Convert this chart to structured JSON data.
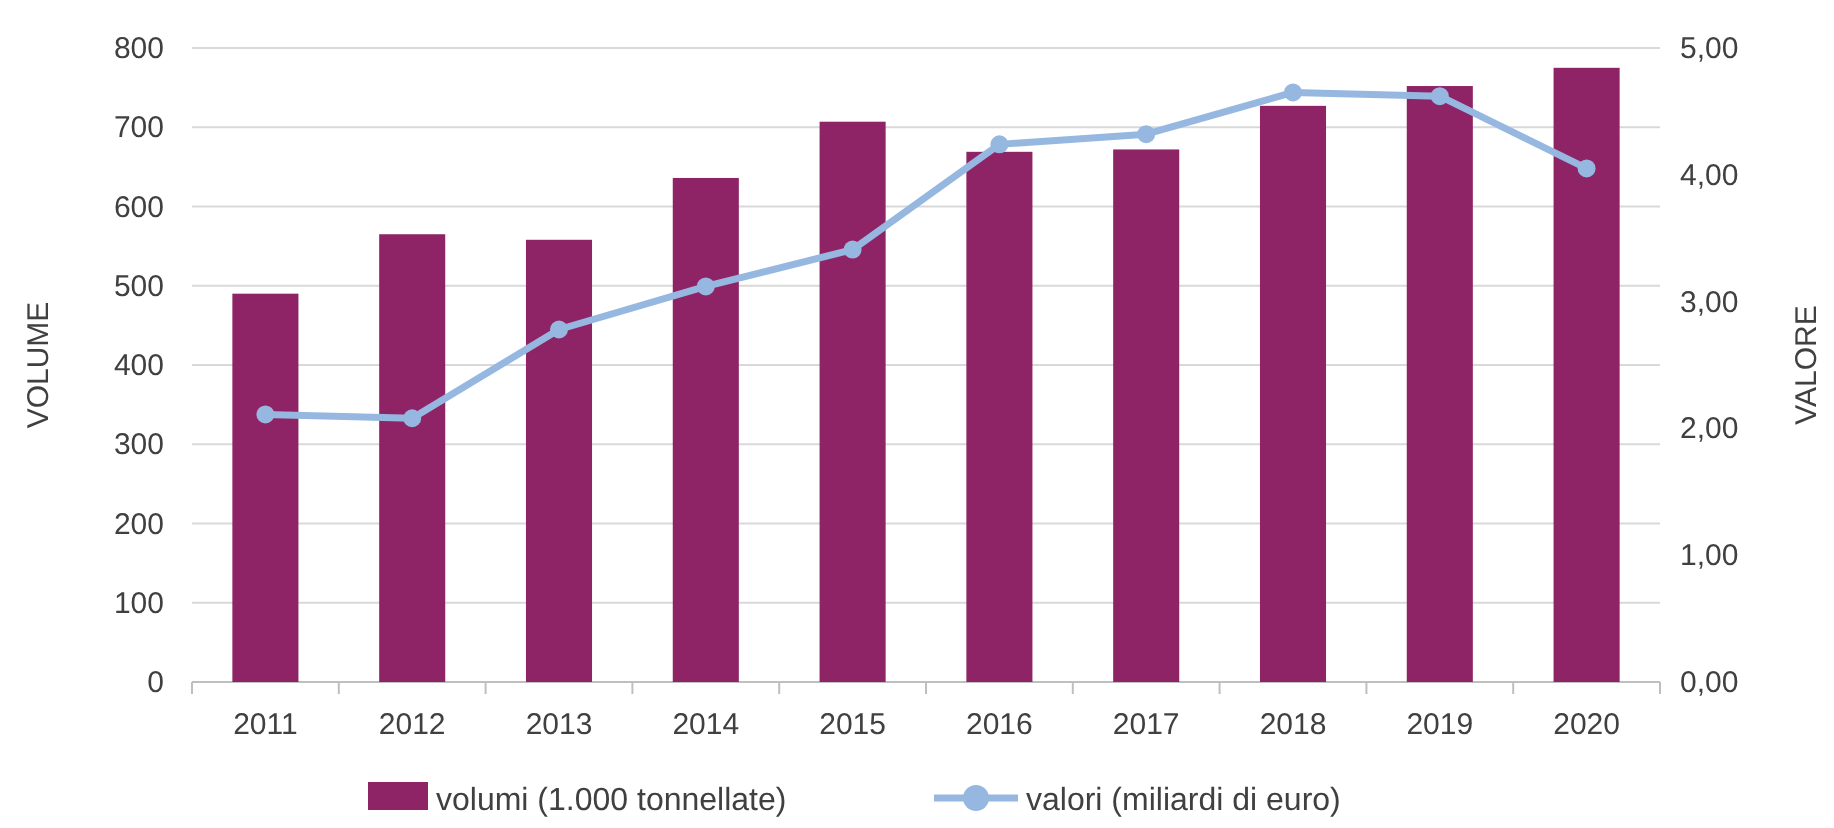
{
  "chart_data": {
    "type": "bar",
    "categories": [
      "2011",
      "2012",
      "2013",
      "2014",
      "2015",
      "2016",
      "2017",
      "2018",
      "2019",
      "2020"
    ],
    "series": [
      {
        "name": "volumi (1.000 tonnellate)",
        "color": "#8e2465",
        "values": [
          490,
          565,
          558,
          636,
          707,
          669,
          672,
          727,
          752,
          775
        ]
      },
      {
        "name": "valori (miliardi di euro)",
        "type": "line",
        "axis": "y2",
        "color": "#96b8e0",
        "marker": "circle",
        "values": [
          2.11,
          2.08,
          2.78,
          3.12,
          3.41,
          4.24,
          4.32,
          4.65,
          4.62,
          4.05
        ]
      }
    ],
    "ylabel": "VOLUME",
    "y2label": "VALORE",
    "ylim": [
      0,
      800
    ],
    "yticks": [
      0,
      100,
      200,
      300,
      400,
      500,
      600,
      700,
      800
    ],
    "y2lim": [
      0,
      5
    ],
    "y2ticks": [
      {
        "value": 0,
        "label": "0,00"
      },
      {
        "value": 1,
        "label": "1,00"
      },
      {
        "value": 2,
        "label": "2,00"
      },
      {
        "value": 3,
        "label": "3,00"
      },
      {
        "value": 4,
        "label": "4,00"
      },
      {
        "value": 5,
        "label": "5,00"
      }
    ],
    "grid": "y",
    "legend": "bottom"
  }
}
